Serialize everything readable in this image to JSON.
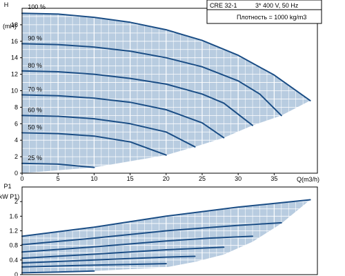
{
  "info_box": {
    "model": "CRE 32-1",
    "supply": "3* 400 V, 50 Hz",
    "density": "Плотность = 1000 kg/m3"
  },
  "chart_data": [
    {
      "type": "line",
      "id": "head",
      "ylabel_line1": "H",
      "ylabel_line2": "(mH)",
      "xlabel": "Q(m3/h)",
      "xlim": [
        0,
        41
      ],
      "ylim": [
        0,
        20
      ],
      "x_ticks": [
        0,
        5,
        10,
        15,
        20,
        25,
        30,
        35
      ],
      "y_ticks": [
        0,
        2,
        4,
        6,
        8,
        10,
        12,
        14,
        16,
        18
      ],
      "grid": true,
      "colors": {
        "curve": "#1a4d85",
        "fill": "#b8cce0",
        "grid": "#ffffff",
        "frame": "#000000"
      },
      "envelope": [
        [
          0,
          0
        ],
        [
          10,
          0.7
        ],
        [
          20,
          2.2
        ],
        [
          24,
          3.2
        ],
        [
          28,
          4.3
        ],
        [
          32,
          5.8
        ],
        [
          36,
          7.0
        ],
        [
          40,
          8.8
        ],
        [
          35,
          11.9
        ],
        [
          30,
          14.3
        ],
        [
          25,
          16.1
        ],
        [
          20,
          17.4
        ],
        [
          15,
          18.3
        ],
        [
          10,
          18.9
        ],
        [
          5,
          19.3
        ],
        [
          0,
          19.4
        ]
      ],
      "series": [
        {
          "name": "100 %",
          "points": [
            [
              0,
              19.4
            ],
            [
              5,
              19.3
            ],
            [
              10,
              18.9
            ],
            [
              15,
              18.3
            ],
            [
              20,
              17.4
            ],
            [
              25,
              16.1
            ],
            [
              30,
              14.3
            ],
            [
              35,
              11.9
            ],
            [
              40,
              8.8
            ]
          ]
        },
        {
          "name": "90 %",
          "points": [
            [
              0,
              15.7
            ],
            [
              5,
              15.6
            ],
            [
              10,
              15.3
            ],
            [
              15,
              14.8
            ],
            [
              20,
              14.0
            ],
            [
              25,
              12.9
            ],
            [
              30,
              11.2
            ],
            [
              33,
              9.6
            ],
            [
              36,
              7.0
            ]
          ]
        },
        {
          "name": "80 %",
          "points": [
            [
              0,
              12.4
            ],
            [
              5,
              12.3
            ],
            [
              10,
              12.0
            ],
            [
              15,
              11.5
            ],
            [
              20,
              10.8
            ],
            [
              25,
              9.6
            ],
            [
              28,
              8.5
            ],
            [
              32,
              5.8
            ]
          ]
        },
        {
          "name": "70 %",
          "points": [
            [
              0,
              9.5
            ],
            [
              5,
              9.4
            ],
            [
              10,
              9.1
            ],
            [
              15,
              8.6
            ],
            [
              20,
              7.7
            ],
            [
              25,
              6.1
            ],
            [
              28,
              4.3
            ]
          ]
        },
        {
          "name": "60 %",
          "points": [
            [
              0,
              7.0
            ],
            [
              5,
              6.9
            ],
            [
              10,
              6.6
            ],
            [
              15,
              6.0
            ],
            [
              20,
              5.0
            ],
            [
              24,
              3.2
            ]
          ]
        },
        {
          "name": "50 %",
          "points": [
            [
              0,
              4.9
            ],
            [
              5,
              4.8
            ],
            [
              10,
              4.5
            ],
            [
              15,
              3.8
            ],
            [
              20,
              2.2
            ]
          ]
        },
        {
          "name": "25 %",
          "points": [
            [
              0,
              1.2
            ],
            [
              5,
              1.1
            ],
            [
              10,
              0.7
            ]
          ]
        }
      ],
      "curve_labels": [
        {
          "text": "100 %",
          "x": 0.8,
          "y": 19.9
        },
        {
          "text": "90 %",
          "x": 0.8,
          "y": 16.1
        },
        {
          "text": "80 %",
          "x": 0.8,
          "y": 12.8
        },
        {
          "text": "70 %",
          "x": 0.8,
          "y": 9.9
        },
        {
          "text": "60 %",
          "x": 0.8,
          "y": 7.4
        },
        {
          "text": "50 %",
          "x": 0.8,
          "y": 5.3
        },
        {
          "text": "25 %",
          "x": 0.8,
          "y": 1.6
        }
      ]
    },
    {
      "type": "line",
      "id": "power",
      "ylabel_line1": "P1",
      "ylabel_line2": "(kW P1)",
      "xlim": [
        0,
        41
      ],
      "ylim": [
        0,
        2.4
      ],
      "y_ticks": [
        0,
        0.4,
        0.8,
        1.2,
        1.6,
        2.0
      ],
      "y_tick_labels": [
        "0",
        "0.4",
        "0.8",
        "1.2",
        "1.6",
        "2"
      ],
      "grid": true,
      "colors": {
        "curve": "#1a4d85",
        "fill": "#b8cce0",
        "grid": "#ffffff",
        "frame": "#000000"
      },
      "envelope": [
        [
          0,
          0.05
        ],
        [
          10,
          0.1
        ],
        [
          20,
          0.2
        ],
        [
          24,
          0.35
        ],
        [
          28,
          0.55
        ],
        [
          32,
          0.9
        ],
        [
          36,
          1.4
        ],
        [
          40,
          2.05
        ],
        [
          30,
          1.85
        ],
        [
          20,
          1.6
        ],
        [
          10,
          1.3
        ],
        [
          0,
          1.05
        ]
      ],
      "series": [
        {
          "name": "100 %",
          "points": [
            [
              0,
              1.05
            ],
            [
              10,
              1.3
            ],
            [
              20,
              1.6
            ],
            [
              30,
              1.85
            ],
            [
              40,
              2.05
            ]
          ]
        },
        {
          "name": "90 %",
          "points": [
            [
              0,
              0.82
            ],
            [
              10,
              1.0
            ],
            [
              20,
              1.2
            ],
            [
              30,
              1.35
            ],
            [
              36,
              1.42
            ]
          ]
        },
        {
          "name": "80 %",
          "points": [
            [
              0,
              0.62
            ],
            [
              10,
              0.76
            ],
            [
              20,
              0.92
            ],
            [
              26,
              1.0
            ],
            [
              32,
              1.05
            ]
          ]
        },
        {
          "name": "70 %",
          "points": [
            [
              0,
              0.45
            ],
            [
              10,
              0.56
            ],
            [
              20,
              0.68
            ],
            [
              28,
              0.75
            ]
          ]
        },
        {
          "name": "60 %",
          "points": [
            [
              0,
              0.32
            ],
            [
              10,
              0.4
            ],
            [
              20,
              0.48
            ],
            [
              24,
              0.5
            ]
          ]
        },
        {
          "name": "50 %",
          "points": [
            [
              0,
              0.21
            ],
            [
              10,
              0.26
            ],
            [
              20,
              0.3
            ]
          ]
        },
        {
          "name": "25 %",
          "points": [
            [
              0,
              0.05
            ],
            [
              5,
              0.07
            ],
            [
              10,
              0.1
            ]
          ]
        }
      ]
    }
  ]
}
